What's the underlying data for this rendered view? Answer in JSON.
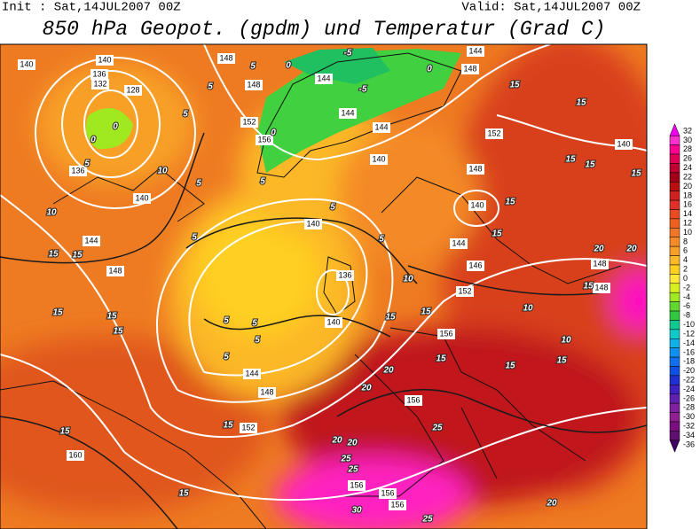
{
  "header": {
    "init": "Init : Sat,14JUL2007 00Z",
    "valid": "Valid: Sat,14JUL2007 00Z",
    "title": "850 hPa Geopot. (gpdm) und Temperatur (Grad C)"
  },
  "legend": {
    "values": [
      32,
      30,
      28,
      26,
      24,
      22,
      20,
      18,
      16,
      14,
      12,
      10,
      8,
      6,
      4,
      2,
      0,
      -2,
      -4,
      -6,
      -8,
      -10,
      -12,
      -14,
      -16,
      -18,
      -20,
      -22,
      -24,
      -26,
      -28,
      -30,
      -32,
      -34,
      -36
    ],
    "colors": [
      "#f000f0",
      "#ff30d0",
      "#ff0090",
      "#e00058",
      "#c00030",
      "#a00018",
      "#b81010",
      "#d02020",
      "#e03028",
      "#e84c20",
      "#ee6020",
      "#f07628",
      "#f48a28",
      "#f8a028",
      "#fcb828",
      "#ffd020",
      "#ffe838",
      "#d8f020",
      "#a0e820",
      "#60d830",
      "#30c840",
      "#10c890",
      "#10c8c8",
      "#10b0e8",
      "#1090f0",
      "#1070f0",
      "#1050e0",
      "#2030d0",
      "#4020c0",
      "#6020b0",
      "#8020a0",
      "#902090",
      "#7a1080",
      "#601070",
      "#400060"
    ]
  },
  "map": {
    "geopotential_labels": [
      "140",
      "140",
      "136",
      "132",
      "128",
      "148",
      "148",
      "144",
      "144",
      "152",
      "156",
      "144",
      "140",
      "136",
      "140",
      "140",
      "140",
      "144",
      "146",
      "148",
      "152",
      "148",
      "140",
      "144",
      "148",
      "136",
      "140",
      "144",
      "148",
      "152",
      "156",
      "156",
      "160",
      "148",
      "148",
      "152",
      "156",
      "156",
      "156",
      "144"
    ],
    "temperature_labels": [
      "0",
      "-5",
      "-5",
      "5",
      "0",
      "0",
      "0",
      "5",
      "5",
      "5",
      "10",
      "5",
      "5",
      "10",
      "15",
      "15",
      "5",
      "5",
      "5",
      "10",
      "15",
      "15",
      "15",
      "15",
      "15",
      "15",
      "15",
      "20",
      "20",
      "15",
      "10",
      "10",
      "15",
      "15",
      "15",
      "15",
      "15",
      "20",
      "20",
      "20",
      "20",
      "25",
      "25",
      "25",
      "30",
      "25",
      "20",
      "15",
      "15",
      "15",
      "15",
      "15",
      "5",
      "5",
      "5",
      "5",
      "15",
      "0"
    ]
  }
}
